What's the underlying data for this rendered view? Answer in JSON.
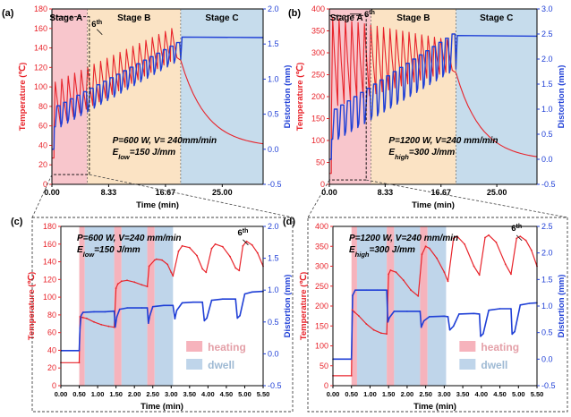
{
  "figure": {
    "colors": {
      "temp": "#e8242b",
      "dist": "#1f3fd6",
      "stageA": "#f8c6cc",
      "stageB": "#fbe3c4",
      "stageC": "#c6dcec",
      "heating": "#f6b3bc",
      "dwell": "#bfd5ea",
      "axis": "#000000",
      "zoom": "#444444"
    }
  },
  "chart_data": [
    {
      "id": "a",
      "panel_label": "(a)",
      "type": "line",
      "xlabel": "Time (min)",
      "ylabel_left": "Temperature (℃)",
      "ylabel_right": "Distortion (mm)",
      "xlim": [
        0,
        31
      ],
      "ylim_left": [
        0,
        180
      ],
      "ylim_right": [
        -0.5,
        2.0
      ],
      "xticks": [
        0,
        8.33,
        16.67,
        25
      ],
      "xtick_labels": [
        "0.00",
        "8.33",
        "16.67",
        "25.00"
      ],
      "yticks_left": [
        0,
        20,
        40,
        60,
        80,
        100,
        120,
        140,
        160,
        180
      ],
      "yticks_right": [
        -0.5,
        0.0,
        0.5,
        1.0,
        1.5,
        2.0
      ],
      "ytick_labels_right": [
        "-0.5",
        "0.0",
        "0.5",
        "1.0",
        "1.5",
        "2.0"
      ],
      "stages": [
        {
          "label": "Stage A",
          "start": 0,
          "end": 5.2,
          "color_key": "stageA"
        },
        {
          "label": "Stage B",
          "start": 5.2,
          "end": 18.9,
          "color_key": "stageB"
        },
        {
          "label": "Stage C",
          "start": 18.9,
          "end": 31,
          "color_key": "stageC"
        }
      ],
      "params": {
        "line1": "P=600 W, V= 240mm/min",
        "e_prefix": "E",
        "e_sub": "low",
        "e_value": "=150 J/mm"
      },
      "annotation": {
        "main": "6",
        "sup": "th",
        "x": 6.6,
        "y": 160
      },
      "zoom_box": {
        "x0": 0,
        "x1": 5.5,
        "y0": 10,
        "y1": 172
      },
      "temp_series": {
        "name": "Temperature",
        "cycles": 19,
        "peak_start": 105,
        "peak_end": 160,
        "trough_start": 62,
        "trough_end": 130,
        "cycle_len": 0.95,
        "heat_frac": 0.2,
        "end_x": 18.9,
        "cool_to": 38,
        "cool_end": 31,
        "preheat": 27
      },
      "dist_series": {
        "name": "Distortion",
        "cycles": 19,
        "high_start": 0.62,
        "high_end": 1.52,
        "low_start": 0.32,
        "low_end": 1.28,
        "plateau": 1.6,
        "end_x": 18.9,
        "cool_end": 31,
        "pre": 0.0
      }
    },
    {
      "id": "b",
      "panel_label": "(b)",
      "type": "line",
      "xlabel": "Time (min)",
      "ylabel_left": "Temperature (℃)",
      "ylabel_right": "Distortion (mm)",
      "xlim": [
        0,
        31
      ],
      "ylim_left": [
        0,
        400
      ],
      "ylim_right": [
        -0.5,
        3.0
      ],
      "xticks": [
        0,
        8.33,
        16.67,
        25
      ],
      "xtick_labels": [
        "0.00",
        "8.33",
        "16.67",
        "25.00"
      ],
      "yticks_left": [
        0,
        50,
        100,
        150,
        200,
        250,
        300,
        350,
        400
      ],
      "yticks_right": [
        -0.5,
        0.0,
        0.5,
        1.0,
        1.5,
        2.0,
        2.5,
        3.0
      ],
      "ytick_labels_right": [
        "-0.5",
        "0.0",
        "0.5",
        "1.0",
        "1.5",
        "2.0",
        "2.5",
        "3.0"
      ],
      "stages": [
        {
          "label": "Stage A",
          "start": 0,
          "end": 6.2,
          "color_key": "stageA"
        },
        {
          "label": "Stage B",
          "start": 6.2,
          "end": 18.9,
          "color_key": "stageB"
        },
        {
          "label": "Stage C",
          "start": 18.9,
          "end": 31,
          "color_key": "stageC"
        }
      ],
      "params": {
        "line1": "P=1200 W, V=240 mm/min",
        "e_prefix": "E",
        "e_sub": "high",
        "e_value": "=300 J/mm"
      },
      "annotation": {
        "main": "6",
        "sup": "th",
        "x": 6.0,
        "y": 378
      },
      "zoom_box": {
        "x0": 0,
        "x1": 5.5,
        "y0": 10,
        "y1": 385
      },
      "temp_series": {
        "name": "Temperature",
        "cycles": 19,
        "peak_start": 380,
        "peak_end": 330,
        "trough_start": 180,
        "trough_end": 260,
        "cycle_len": 0.95,
        "heat_frac": 0.2,
        "end_x": 18.9,
        "cool_to": 55,
        "cool_end": 31,
        "preheat": 25
      },
      "dist_series": {
        "name": "Distortion",
        "cycles": 19,
        "high_start": 1.0,
        "high_end": 2.5,
        "low_start": 0.4,
        "low_end": 1.8,
        "plateau": 2.47,
        "end_x": 18.9,
        "cool_end": 31,
        "pre": 0.0
      }
    },
    {
      "id": "c",
      "panel_label": "(c)",
      "type": "line",
      "xlabel": "Time (min)",
      "ylabel_left": "Temperature (℃)",
      "ylabel_right": "Distortion (mm)",
      "xlim": [
        0,
        5.5
      ],
      "ylim_left": [
        0,
        180
      ],
      "ylim_right": [
        -0.5,
        2.0
      ],
      "xticks": [
        0,
        0.5,
        1.0,
        1.5,
        2.0,
        2.5,
        3.0,
        3.5,
        4.0,
        4.5,
        5.0,
        5.5
      ],
      "xtick_labels": [
        "0.00",
        "0.50",
        "1.00",
        "1.50",
        "2.00",
        "2.50",
        "3.00",
        "3.50",
        "4.00",
        "4.50",
        "5.00",
        "5.50"
      ],
      "yticks_left": [
        0,
        20,
        40,
        60,
        80,
        100,
        120,
        140,
        160,
        180
      ],
      "yticks_right": [
        -0.5,
        0.0,
        0.5,
        1.0,
        1.5,
        2.0
      ],
      "ytick_labels_right": [
        "-0.5",
        "0.0",
        "0.5",
        "1.0",
        "1.5",
        "2.0"
      ],
      "bands": [
        {
          "kind": "heating",
          "start": 0.5,
          "end": 0.65
        },
        {
          "kind": "dwell",
          "start": 0.65,
          "end": 1.45
        },
        {
          "kind": "heating",
          "start": 1.45,
          "end": 1.65
        },
        {
          "kind": "dwell",
          "start": 1.65,
          "end": 2.35
        },
        {
          "kind": "heating",
          "start": 2.35,
          "end": 2.55
        },
        {
          "kind": "dwell",
          "start": 2.55,
          "end": 3.05
        }
      ],
      "legend": [
        {
          "kind": "heating",
          "label": "heating"
        },
        {
          "kind": "dwell",
          "label": "dwell"
        }
      ],
      "params": {
        "line1": "P=600 W, V=240 mm/min",
        "e_prefix": "E",
        "e_sub": "low",
        "e_value": "=150 J/mm"
      },
      "annotation": {
        "main": "6",
        "sup": "th",
        "x": 4.95,
        "y": 166
      },
      "temp_series": {
        "name": "Temperature",
        "points": [
          [
            0,
            26
          ],
          [
            0.5,
            26
          ],
          [
            0.52,
            78
          ],
          [
            0.6,
            77
          ],
          [
            0.7,
            76
          ],
          [
            0.9,
            72
          ],
          [
            1.1,
            69
          ],
          [
            1.3,
            67
          ],
          [
            1.45,
            66
          ],
          [
            1.5,
            110
          ],
          [
            1.55,
            115
          ],
          [
            1.65,
            118
          ],
          [
            1.8,
            119
          ],
          [
            2.0,
            117
          ],
          [
            2.2,
            114
          ],
          [
            2.35,
            112
          ],
          [
            2.4,
            135
          ],
          [
            2.55,
            142
          ],
          [
            2.6,
            143
          ],
          [
            2.75,
            142
          ],
          [
            2.9,
            137
          ],
          [
            3.0,
            128
          ],
          [
            3.05,
            124
          ],
          [
            3.2,
            152
          ],
          [
            3.3,
            158
          ],
          [
            3.5,
            156
          ],
          [
            3.7,
            147
          ],
          [
            3.85,
            132
          ],
          [
            3.95,
            128
          ],
          [
            4.1,
            155
          ],
          [
            4.2,
            160
          ],
          [
            4.4,
            157
          ],
          [
            4.6,
            146
          ],
          [
            4.75,
            133
          ],
          [
            4.85,
            130
          ],
          [
            4.95,
            158
          ],
          [
            5.05,
            163
          ],
          [
            5.2,
            159
          ],
          [
            5.35,
            150
          ],
          [
            5.5,
            135
          ]
        ]
      },
      "dist_series": {
        "name": "Distortion",
        "points": [
          [
            0,
            0.05
          ],
          [
            0.5,
            0.05
          ],
          [
            0.52,
            0.4
          ],
          [
            0.55,
            0.6
          ],
          [
            0.6,
            0.65
          ],
          [
            0.9,
            0.66
          ],
          [
            1.2,
            0.66
          ],
          [
            1.45,
            0.67
          ],
          [
            1.48,
            0.42
          ],
          [
            1.52,
            0.58
          ],
          [
            1.6,
            0.7
          ],
          [
            1.8,
            0.72
          ],
          [
            2.2,
            0.72
          ],
          [
            2.35,
            0.72
          ],
          [
            2.38,
            0.48
          ],
          [
            2.42,
            0.6
          ],
          [
            2.5,
            0.74
          ],
          [
            2.8,
            0.76
          ],
          [
            3.05,
            0.76
          ],
          [
            3.1,
            0.55
          ],
          [
            3.15,
            0.68
          ],
          [
            3.3,
            0.8
          ],
          [
            3.6,
            0.81
          ],
          [
            3.85,
            0.81
          ],
          [
            3.9,
            0.52
          ],
          [
            3.97,
            0.56
          ],
          [
            4.1,
            0.84
          ],
          [
            4.4,
            0.86
          ],
          [
            4.75,
            0.86
          ],
          [
            4.8,
            0.56
          ],
          [
            4.87,
            0.6
          ],
          [
            5.0,
            0.94
          ],
          [
            5.2,
            0.97
          ],
          [
            5.5,
            0.98
          ]
        ]
      }
    },
    {
      "id": "d",
      "panel_label": "(d)",
      "type": "line",
      "xlabel": "Time (min)",
      "ylabel_left": "Temperature (℃)",
      "ylabel_right": "Distortion (mm)",
      "xlim": [
        0,
        5.5
      ],
      "ylim_left": [
        0,
        400
      ],
      "ylim_right": [
        -0.5,
        2.5
      ],
      "xticks": [
        0,
        0.5,
        1.0,
        1.5,
        2.0,
        2.5,
        3.0,
        3.5,
        4.0,
        4.5,
        5.0,
        5.5
      ],
      "xtick_labels": [
        "0.00",
        "0.50",
        "1.00",
        "1.50",
        "2.00",
        "2.50",
        "3.00",
        "3.50",
        "4.00",
        "4.50",
        "5.00",
        "5.50"
      ],
      "yticks_left": [
        0,
        50,
        100,
        150,
        200,
        250,
        300,
        350,
        400
      ],
      "yticks_right": [
        -0.5,
        0.0,
        0.5,
        1.0,
        1.5,
        2.0,
        2.5
      ],
      "ytick_labels_right": [
        "-0.5",
        "0.0",
        "0.5",
        "1.0",
        "1.5",
        "2.0",
        "2.5"
      ],
      "bands": [
        {
          "kind": "heating",
          "start": 0.5,
          "end": 0.65
        },
        {
          "kind": "dwell",
          "start": 0.65,
          "end": 1.45
        },
        {
          "kind": "heating",
          "start": 1.45,
          "end": 1.65
        },
        {
          "kind": "dwell",
          "start": 1.65,
          "end": 2.35
        },
        {
          "kind": "heating",
          "start": 2.35,
          "end": 2.55
        },
        {
          "kind": "dwell",
          "start": 2.55,
          "end": 3.05
        }
      ],
      "legend": [
        {
          "kind": "heating",
          "label": "heating"
        },
        {
          "kind": "dwell",
          "label": "dwell"
        }
      ],
      "params": {
        "line1": "P=1200 W, V=240 mm/min",
        "e_prefix": "E",
        "e_sub": "high",
        "e_value": "=300 J/mm"
      },
      "annotation": {
        "main": "6",
        "sup": "th",
        "x": 4.95,
        "y": 380
      },
      "temp_series": {
        "name": "Temperature",
        "points": [
          [
            0,
            25
          ],
          [
            0.5,
            25
          ],
          [
            0.52,
            190
          ],
          [
            0.58,
            185
          ],
          [
            0.7,
            175
          ],
          [
            0.9,
            155
          ],
          [
            1.1,
            140
          ],
          [
            1.3,
            132
          ],
          [
            1.45,
            130
          ],
          [
            1.5,
            280
          ],
          [
            1.55,
            290
          ],
          [
            1.7,
            285
          ],
          [
            1.9,
            265
          ],
          [
            2.1,
            240
          ],
          [
            2.3,
            225
          ],
          [
            2.4,
            330
          ],
          [
            2.5,
            350
          ],
          [
            2.6,
            345
          ],
          [
            2.8,
            320
          ],
          [
            3.0,
            285
          ],
          [
            3.1,
            262
          ],
          [
            3.25,
            370
          ],
          [
            3.35,
            375
          ],
          [
            3.55,
            355
          ],
          [
            3.8,
            300
          ],
          [
            3.95,
            278
          ],
          [
            4.1,
            372
          ],
          [
            4.2,
            378
          ],
          [
            4.4,
            360
          ],
          [
            4.65,
            305
          ],
          [
            4.8,
            280
          ],
          [
            4.95,
            370
          ],
          [
            5.05,
            375
          ],
          [
            5.2,
            365
          ],
          [
            5.35,
            340
          ],
          [
            5.5,
            300
          ]
        ]
      },
      "dist_series": {
        "name": "Distortion",
        "points": [
          [
            0,
            0.0
          ],
          [
            0.5,
            0.0
          ],
          [
            0.53,
            1.2
          ],
          [
            0.6,
            1.3
          ],
          [
            0.9,
            1.3
          ],
          [
            1.2,
            1.3
          ],
          [
            1.45,
            1.3
          ],
          [
            1.48,
            0.7
          ],
          [
            1.52,
            0.78
          ],
          [
            1.65,
            0.9
          ],
          [
            2.0,
            0.9
          ],
          [
            2.35,
            0.9
          ],
          [
            2.38,
            0.6
          ],
          [
            2.45,
            0.72
          ],
          [
            2.6,
            0.8
          ],
          [
            3.0,
            0.81
          ],
          [
            3.1,
            0.8
          ],
          [
            3.15,
            0.55
          ],
          [
            3.25,
            0.62
          ],
          [
            3.4,
            0.85
          ],
          [
            3.8,
            0.86
          ],
          [
            3.95,
            0.85
          ],
          [
            3.98,
            0.43
          ],
          [
            4.05,
            0.48
          ],
          [
            4.2,
            0.92
          ],
          [
            4.5,
            0.95
          ],
          [
            4.8,
            0.95
          ],
          [
            4.83,
            0.47
          ],
          [
            4.9,
            0.52
          ],
          [
            5.05,
            1.02
          ],
          [
            5.3,
            1.05
          ],
          [
            5.5,
            1.06
          ]
        ]
      }
    }
  ]
}
